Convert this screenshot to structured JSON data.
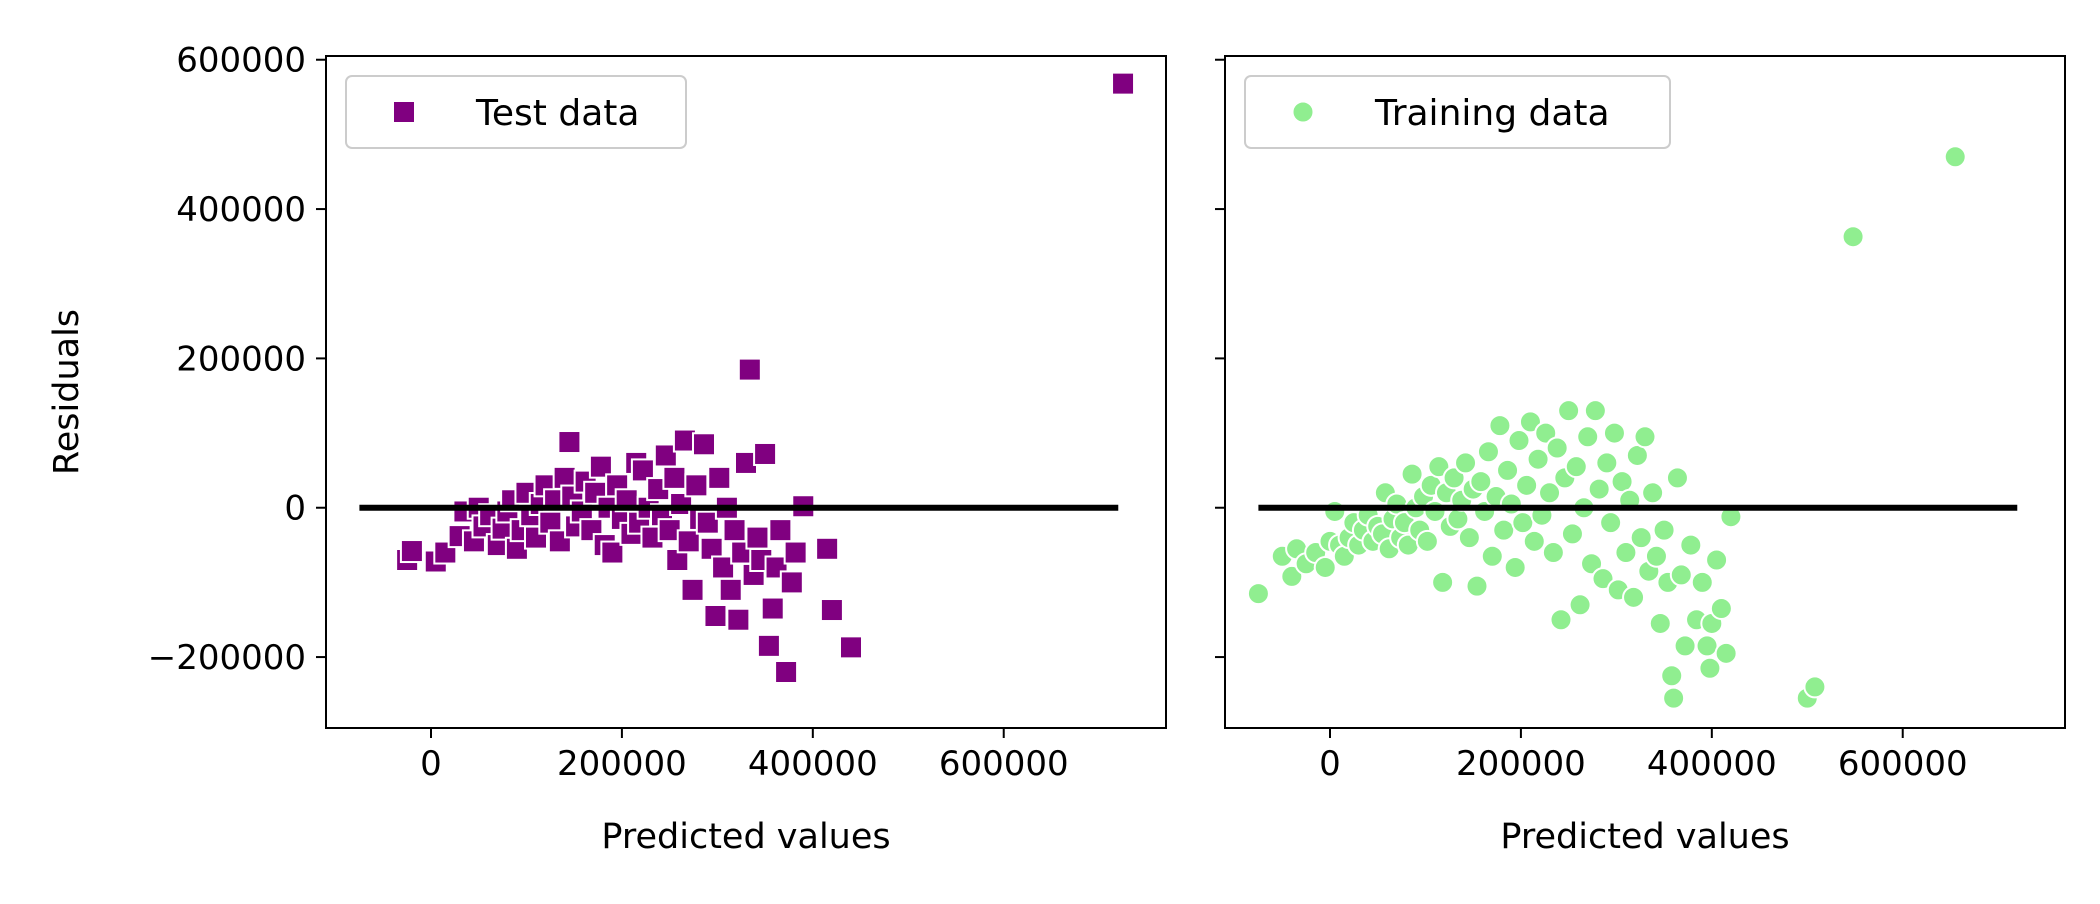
{
  "chart_data": [
    {
      "type": "scatter",
      "title": "",
      "xlabel": "Predicted values",
      "ylabel": "Residuals",
      "xlim": [
        -110000,
        770000
      ],
      "ylim": [
        -295000,
        605000
      ],
      "xticks": [
        0,
        200000,
        400000,
        600000
      ],
      "xtick_labels": [
        "0",
        "200000",
        "400000",
        "600000"
      ],
      "yticks": [
        -200000,
        0,
        200000,
        400000,
        600000
      ],
      "ytick_labels": [
        "−200000",
        "0",
        "200000",
        "400000",
        "600000"
      ],
      "legend_position": "upper left",
      "hline": {
        "y": 0,
        "xmin": -75000,
        "xmax": 720000,
        "color": "#000000"
      },
      "series": [
        {
          "name": "Test data",
          "marker": "square",
          "color": "#800080",
          "points": [
            [
              -25000,
              -70000
            ],
            [
              -20000,
              -58000
            ],
            [
              5000,
              -72000
            ],
            [
              15000,
              -60000
            ],
            [
              30000,
              -38000
            ],
            [
              35000,
              -5000
            ],
            [
              45000,
              -45000
            ],
            [
              50000,
              0
            ],
            [
              55000,
              -25000
            ],
            [
              62000,
              -10000
            ],
            [
              70000,
              -50000
            ],
            [
              75000,
              -28000
            ],
            [
              80000,
              -5000
            ],
            [
              85000,
              10000
            ],
            [
              90000,
              -55000
            ],
            [
              95000,
              -30000
            ],
            [
              100000,
              20000
            ],
            [
              105000,
              -10000
            ],
            [
              110000,
              -40000
            ],
            [
              115000,
              5000
            ],
            [
              120000,
              30000
            ],
            [
              125000,
              -20000
            ],
            [
              130000,
              10000
            ],
            [
              135000,
              -45000
            ],
            [
              140000,
              40000
            ],
            [
              145000,
              88000
            ],
            [
              148000,
              15000
            ],
            [
              152000,
              -25000
            ],
            [
              158000,
              -5000
            ],
            [
              162000,
              35000
            ],
            [
              168000,
              -30000
            ],
            [
              172000,
              20000
            ],
            [
              178000,
              55000
            ],
            [
              182000,
              -50000
            ],
            [
              186000,
              0
            ],
            [
              190000,
              -60000
            ],
            [
              195000,
              30000
            ],
            [
              200000,
              -15000
            ],
            [
              205000,
              10000
            ],
            [
              210000,
              -35000
            ],
            [
              215000,
              60000
            ],
            [
              218000,
              -20000
            ],
            [
              222000,
              50000
            ],
            [
              228000,
              0
            ],
            [
              232000,
              -40000
            ],
            [
              238000,
              25000
            ],
            [
              242000,
              -10000
            ],
            [
              246000,
              70000
            ],
            [
              250000,
              -30000
            ],
            [
              255000,
              40000
            ],
            [
              258000,
              -70000
            ],
            [
              262000,
              5000
            ],
            [
              266000,
              90000
            ],
            [
              270000,
              -45000
            ],
            [
              274000,
              -110000
            ],
            [
              278000,
              30000
            ],
            [
              282000,
              -15000
            ],
            [
              286000,
              85000
            ],
            [
              290000,
              -20000
            ],
            [
              294000,
              -55000
            ],
            [
              298000,
              -145000
            ],
            [
              302000,
              40000
            ],
            [
              306000,
              -80000
            ],
            [
              310000,
              0
            ],
            [
              314000,
              -110000
            ],
            [
              318000,
              -30000
            ],
            [
              322000,
              -150000
            ],
            [
              326000,
              -60000
            ],
            [
              330000,
              60000
            ],
            [
              334000,
              185000
            ],
            [
              338000,
              -90000
            ],
            [
              342000,
              -40000
            ],
            [
              346000,
              -70000
            ],
            [
              350000,
              72000
            ],
            [
              354000,
              -185000
            ],
            [
              358000,
              -135000
            ],
            [
              362000,
              -80000
            ],
            [
              366000,
              -30000
            ],
            [
              372000,
              -220000
            ],
            [
              378000,
              -100000
            ],
            [
              382000,
              -60000
            ],
            [
              390000,
              2000
            ],
            [
              415000,
              -55000
            ],
            [
              420000,
              -137000
            ],
            [
              440000,
              -187000
            ],
            [
              725000,
              568000
            ]
          ]
        },
        {
          "name": "Training data",
          "marker": "circle",
          "color": "#90EE90",
          "points": [
            [
              -75000,
              -115000
            ],
            [
              -50000,
              -65000
            ],
            [
              -40000,
              -92000
            ],
            [
              -35000,
              -55000
            ],
            [
              -25000,
              -75000
            ],
            [
              -15000,
              -60000
            ],
            [
              -5000,
              -80000
            ],
            [
              0,
              -45000
            ],
            [
              5000,
              -5000
            ],
            [
              10000,
              -50000
            ],
            [
              15000,
              -65000
            ],
            [
              20000,
              -40000
            ],
            [
              25000,
              -20000
            ],
            [
              30000,
              -50000
            ],
            [
              35000,
              -30000
            ],
            [
              40000,
              -10000
            ],
            [
              45000,
              -45000
            ],
            [
              50000,
              -25000
            ],
            [
              55000,
              -35000
            ],
            [
              58000,
              20000
            ],
            [
              62000,
              -55000
            ],
            [
              66000,
              -15000
            ],
            [
              70000,
              5000
            ],
            [
              74000,
              -40000
            ],
            [
              78000,
              -20000
            ],
            [
              82000,
              -50000
            ],
            [
              86000,
              45000
            ],
            [
              90000,
              0
            ],
            [
              94000,
              -30000
            ],
            [
              98000,
              15000
            ],
            [
              102000,
              -45000
            ],
            [
              106000,
              30000
            ],
            [
              110000,
              -5000
            ],
            [
              114000,
              55000
            ],
            [
              118000,
              -100000
            ],
            [
              122000,
              20000
            ],
            [
              126000,
              -25000
            ],
            [
              130000,
              40000
            ],
            [
              134000,
              -15000
            ],
            [
              138000,
              10000
            ],
            [
              142000,
              60000
            ],
            [
              146000,
              -40000
            ],
            [
              150000,
              25000
            ],
            [
              154000,
              -105000
            ],
            [
              158000,
              35000
            ],
            [
              162000,
              -5000
            ],
            [
              166000,
              75000
            ],
            [
              170000,
              -65000
            ],
            [
              174000,
              15000
            ],
            [
              178000,
              110000
            ],
            [
              182000,
              -30000
            ],
            [
              186000,
              50000
            ],
            [
              190000,
              5000
            ],
            [
              194000,
              -80000
            ],
            [
              198000,
              90000
            ],
            [
              202000,
              -20000
            ],
            [
              206000,
              30000
            ],
            [
              210000,
              115000
            ],
            [
              214000,
              -45000
            ],
            [
              218000,
              65000
            ],
            [
              222000,
              -10000
            ],
            [
              226000,
              100000
            ],
            [
              230000,
              20000
            ],
            [
              234000,
              -60000
            ],
            [
              238000,
              80000
            ],
            [
              242000,
              -150000
            ],
            [
              246000,
              40000
            ],
            [
              250000,
              130000
            ],
            [
              254000,
              -35000
            ],
            [
              258000,
              55000
            ],
            [
              262000,
              -130000
            ],
            [
              266000,
              0
            ],
            [
              270000,
              95000
            ],
            [
              274000,
              -75000
            ],
            [
              278000,
              130000
            ],
            [
              282000,
              25000
            ],
            [
              286000,
              -95000
            ],
            [
              290000,
              60000
            ],
            [
              294000,
              -20000
            ],
            [
              298000,
              100000
            ],
            [
              302000,
              -110000
            ],
            [
              306000,
              35000
            ],
            [
              310000,
              -60000
            ],
            [
              314000,
              10000
            ],
            [
              318000,
              -120000
            ],
            [
              322000,
              70000
            ],
            [
              326000,
              -40000
            ],
            [
              330000,
              95000
            ],
            [
              334000,
              -85000
            ],
            [
              338000,
              20000
            ],
            [
              342000,
              -65000
            ],
            [
              346000,
              -155000
            ],
            [
              350000,
              -30000
            ],
            [
              354000,
              -100000
            ],
            [
              358000,
              -225000
            ],
            [
              360000,
              -255000
            ],
            [
              364000,
              40000
            ],
            [
              368000,
              -90000
            ],
            [
              372000,
              -185000
            ],
            [
              378000,
              -50000
            ],
            [
              384000,
              -150000
            ],
            [
              390000,
              -100000
            ],
            [
              395000,
              -185000
            ],
            [
              398000,
              -215000
            ],
            [
              400000,
              -155000
            ],
            [
              405000,
              -70000
            ],
            [
              410000,
              -135000
            ],
            [
              415000,
              -195000
            ],
            [
              420000,
              -12000
            ],
            [
              500000,
              -255000
            ],
            [
              508000,
              -240000
            ],
            [
              548000,
              363000
            ],
            [
              655000,
              470000
            ]
          ]
        }
      ]
    }
  ]
}
